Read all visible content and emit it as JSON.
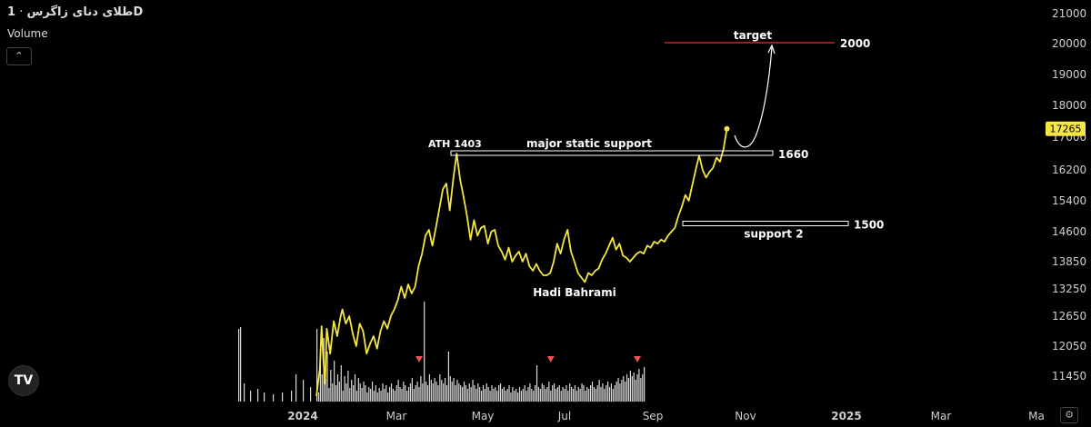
{
  "header": {
    "symbol": "طلای دنای زاگرس",
    "separator": "·",
    "interval": "1D",
    "volume_label": "Volume",
    "collapse_icon": "chevron-up-icon",
    "logo_text": "TV",
    "settings_icon": "gear-icon"
  },
  "colors": {
    "price_line": "#f5e642",
    "target_line": "#d11f2b",
    "last_price_bg": "#f5e642",
    "volume": "#d9d9d9",
    "marker": "#ef5350"
  },
  "chart_data": {
    "type": "line",
    "y_ticks": [
      "21000",
      "20000",
      "19000",
      "18000",
      "17000",
      "16200",
      "15400",
      "14600",
      "13850",
      "13250",
      "12650",
      "12050",
      "11450"
    ],
    "x_ticks": [
      "2024",
      "Mar",
      "May",
      "Jul",
      "Sep",
      "Nov",
      "2025",
      "Mar",
      "Ma"
    ],
    "last_price": "17265",
    "price_series": [
      [
        0,
        11050
      ],
      [
        2,
        11600
      ],
      [
        3,
        12450
      ],
      [
        4,
        11800
      ],
      [
        5,
        11300
      ],
      [
        6,
        12400
      ],
      [
        8,
        11900
      ],
      [
        10,
        12550
      ],
      [
        12,
        12250
      ],
      [
        14,
        12650
      ],
      [
        15,
        12800
      ],
      [
        17,
        12500
      ],
      [
        19,
        12650
      ],
      [
        21,
        12300
      ],
      [
        23,
        12050
      ],
      [
        25,
        12500
      ],
      [
        27,
        12350
      ],
      [
        29,
        11900
      ],
      [
        31,
        12100
      ],
      [
        33,
        12250
      ],
      [
        35,
        12000
      ],
      [
        37,
        12350
      ],
      [
        39,
        12550
      ],
      [
        41,
        12400
      ],
      [
        43,
        12650
      ],
      [
        45,
        12800
      ],
      [
        47,
        13000
      ],
      [
        49,
        13300
      ],
      [
        51,
        13050
      ],
      [
        53,
        13350
      ],
      [
        55,
        13150
      ],
      [
        57,
        13300
      ],
      [
        59,
        13750
      ],
      [
        61,
        14050
      ],
      [
        63,
        14500
      ],
      [
        65,
        14650
      ],
      [
        67,
        14250
      ],
      [
        69,
        14700
      ],
      [
        71,
        15200
      ],
      [
        73,
        15700
      ],
      [
        75,
        15850
      ],
      [
        77,
        15150
      ],
      [
        79,
        15950
      ],
      [
        81,
        16600
      ],
      [
        83,
        15950
      ],
      [
        85,
        15500
      ],
      [
        87,
        15000
      ],
      [
        89,
        14400
      ],
      [
        91,
        14900
      ],
      [
        93,
        14500
      ],
      [
        95,
        14700
      ],
      [
        97,
        14750
      ],
      [
        99,
        14300
      ],
      [
        101,
        14600
      ],
      [
        103,
        14650
      ],
      [
        105,
        14250
      ],
      [
        107,
        14100
      ],
      [
        109,
        13900
      ],
      [
        111,
        14200
      ],
      [
        113,
        13850
      ],
      [
        115,
        14000
      ],
      [
        117,
        14100
      ],
      [
        119,
        13850
      ],
      [
        121,
        14050
      ],
      [
        123,
        13750
      ],
      [
        125,
        13650
      ],
      [
        127,
        13800
      ],
      [
        129,
        13650
      ],
      [
        131,
        13550
      ],
      [
        133,
        13550
      ],
      [
        135,
        13600
      ],
      [
        137,
        13850
      ],
      [
        139,
        14300
      ],
      [
        141,
        14050
      ],
      [
        143,
        14400
      ],
      [
        145,
        14650
      ],
      [
        147,
        14100
      ],
      [
        149,
        13850
      ],
      [
        151,
        13600
      ],
      [
        153,
        13500
      ],
      [
        155,
        13400
      ],
      [
        157,
        13600
      ],
      [
        159,
        13550
      ],
      [
        161,
        13650
      ],
      [
        163,
        13700
      ],
      [
        165,
        13900
      ],
      [
        167,
        14050
      ],
      [
        169,
        14250
      ],
      [
        171,
        14450
      ],
      [
        173,
        14150
      ],
      [
        175,
        14300
      ],
      [
        177,
        14000
      ],
      [
        179,
        13950
      ],
      [
        181,
        13850
      ],
      [
        183,
        13950
      ],
      [
        185,
        14050
      ],
      [
        187,
        14100
      ],
      [
        189,
        14050
      ],
      [
        191,
        14250
      ],
      [
        193,
        14200
      ],
      [
        195,
        14350
      ],
      [
        197,
        14300
      ],
      [
        199,
        14400
      ],
      [
        201,
        14350
      ],
      [
        203,
        14500
      ],
      [
        205,
        14600
      ],
      [
        207,
        14700
      ],
      [
        209,
        15000
      ],
      [
        211,
        15250
      ],
      [
        213,
        15550
      ],
      [
        215,
        15400
      ],
      [
        217,
        15800
      ],
      [
        219,
        16200
      ],
      [
        221,
        16550
      ],
      [
        223,
        16200
      ],
      [
        225,
        16000
      ],
      [
        227,
        16150
      ],
      [
        229,
        16250
      ],
      [
        231,
        16500
      ],
      [
        233,
        16400
      ],
      [
        235,
        16700
      ],
      [
        237,
        17265
      ]
    ],
    "volume_series": [
      [
        0,
        80
      ],
      [
        1,
        10
      ],
      [
        2,
        48
      ],
      [
        3,
        30
      ],
      [
        4,
        70
      ],
      [
        5,
        25
      ],
      [
        6,
        55
      ],
      [
        7,
        15
      ],
      [
        8,
        35
      ],
      [
        9,
        20
      ],
      [
        10,
        45
      ],
      [
        11,
        18
      ],
      [
        12,
        30
      ],
      [
        13,
        22
      ],
      [
        14,
        40
      ],
      [
        15,
        12
      ],
      [
        16,
        28
      ],
      [
        17,
        20
      ],
      [
        18,
        34
      ],
      [
        19,
        15
      ],
      [
        20,
        24
      ],
      [
        21,
        18
      ],
      [
        22,
        30
      ],
      [
        23,
        12
      ],
      [
        24,
        26
      ],
      [
        25,
        20
      ],
      [
        26,
        15
      ],
      [
        27,
        22
      ],
      [
        28,
        18
      ],
      [
        29,
        10
      ],
      [
        30,
        16
      ],
      [
        31,
        14
      ],
      [
        32,
        22
      ],
      [
        33,
        12
      ],
      [
        34,
        18
      ],
      [
        35,
        10
      ],
      [
        36,
        15
      ],
      [
        37,
        12
      ],
      [
        38,
        20
      ],
      [
        39,
        14
      ],
      [
        40,
        18
      ],
      [
        41,
        10
      ],
      [
        42,
        16
      ],
      [
        43,
        20
      ],
      [
        44,
        14
      ],
      [
        45,
        12
      ],
      [
        46,
        18
      ],
      [
        47,
        24
      ],
      [
        48,
        16
      ],
      [
        49,
        14
      ],
      [
        50,
        22
      ],
      [
        51,
        18
      ],
      [
        52,
        12
      ],
      [
        53,
        16
      ],
      [
        54,
        20
      ],
      [
        55,
        26
      ],
      [
        56,
        14
      ],
      [
        57,
        18
      ],
      [
        58,
        22
      ],
      [
        59,
        16
      ],
      [
        60,
        28
      ],
      [
        61,
        20
      ],
      [
        62,
        110
      ],
      [
        63,
        22
      ],
      [
        64,
        18
      ],
      [
        65,
        30
      ],
      [
        66,
        24
      ],
      [
        67,
        20
      ],
      [
        68,
        26
      ],
      [
        69,
        22
      ],
      [
        70,
        18
      ],
      [
        71,
        30
      ],
      [
        72,
        24
      ],
      [
        73,
        20
      ],
      [
        74,
        26
      ],
      [
        75,
        18
      ],
      [
        76,
        55
      ],
      [
        77,
        28
      ],
      [
        78,
        22
      ],
      [
        79,
        26
      ],
      [
        80,
        18
      ],
      [
        81,
        24
      ],
      [
        82,
        20
      ],
      [
        83,
        18
      ],
      [
        84,
        16
      ],
      [
        85,
        22
      ],
      [
        86,
        18
      ],
      [
        87,
        14
      ],
      [
        88,
        20
      ],
      [
        89,
        16
      ],
      [
        90,
        24
      ],
      [
        91,
        18
      ],
      [
        92,
        14
      ],
      [
        93,
        20
      ],
      [
        94,
        16
      ],
      [
        95,
        12
      ],
      [
        96,
        18
      ],
      [
        97,
        14
      ],
      [
        98,
        20
      ],
      [
        99,
        16
      ],
      [
        100,
        12
      ],
      [
        101,
        18
      ],
      [
        102,
        14
      ],
      [
        103,
        16
      ],
      [
        104,
        12
      ],
      [
        105,
        18
      ],
      [
        106,
        20
      ],
      [
        107,
        14
      ],
      [
        108,
        16
      ],
      [
        109,
        12
      ],
      [
        110,
        14
      ],
      [
        111,
        18
      ],
      [
        112,
        10
      ],
      [
        113,
        16
      ],
      [
        114,
        12
      ],
      [
        115,
        14
      ],
      [
        116,
        10
      ],
      [
        117,
        16
      ],
      [
        118,
        12
      ],
      [
        119,
        14
      ],
      [
        120,
        18
      ],
      [
        121,
        12
      ],
      [
        122,
        16
      ],
      [
        123,
        20
      ],
      [
        124,
        14
      ],
      [
        125,
        12
      ],
      [
        126,
        18
      ],
      [
        127,
        40
      ],
      [
        128,
        16
      ],
      [
        129,
        14
      ],
      [
        130,
        20
      ],
      [
        131,
        18
      ],
      [
        132,
        14
      ],
      [
        133,
        16
      ],
      [
        134,
        22
      ],
      [
        135,
        12
      ],
      [
        136,
        18
      ],
      [
        137,
        20
      ],
      [
        138,
        14
      ],
      [
        139,
        16
      ],
      [
        140,
        18
      ],
      [
        141,
        12
      ],
      [
        142,
        16
      ],
      [
        143,
        14
      ],
      [
        144,
        18
      ],
      [
        145,
        12
      ],
      [
        146,
        20
      ],
      [
        147,
        16
      ],
      [
        148,
        14
      ],
      [
        149,
        18
      ],
      [
        150,
        12
      ],
      [
        151,
        16
      ],
      [
        152,
        14
      ],
      [
        153,
        20
      ],
      [
        154,
        18
      ],
      [
        155,
        12
      ],
      [
        156,
        16
      ],
      [
        157,
        14
      ],
      [
        158,
        18
      ],
      [
        159,
        22
      ],
      [
        160,
        16
      ],
      [
        161,
        14
      ],
      [
        162,
        18
      ],
      [
        163,
        24
      ],
      [
        164,
        16
      ],
      [
        165,
        20
      ],
      [
        166,
        14
      ],
      [
        167,
        18
      ],
      [
        168,
        22
      ],
      [
        169,
        16
      ],
      [
        170,
        20
      ],
      [
        171,
        14
      ],
      [
        172,
        18
      ],
      [
        173,
        22
      ],
      [
        174,
        26
      ],
      [
        175,
        20
      ],
      [
        176,
        24
      ],
      [
        177,
        28
      ],
      [
        178,
        22
      ],
      [
        179,
        30
      ],
      [
        180,
        26
      ],
      [
        181,
        34
      ],
      [
        182,
        28
      ],
      [
        183,
        32
      ],
      [
        184,
        24
      ],
      [
        185,
        30
      ],
      [
        186,
        36
      ],
      [
        187,
        26
      ],
      [
        188,
        30
      ],
      [
        189,
        38
      ]
    ],
    "volume_markers": [
      59,
      135,
      185
    ],
    "annotations": {
      "ath_label": "ATH 1403",
      "major_label": "major static support",
      "major_value": "1660",
      "support2_label": "support 2",
      "support2_value": "1500",
      "target_label": "target",
      "target_value": "2000",
      "author_label": "Hadi Bahrami"
    }
  }
}
